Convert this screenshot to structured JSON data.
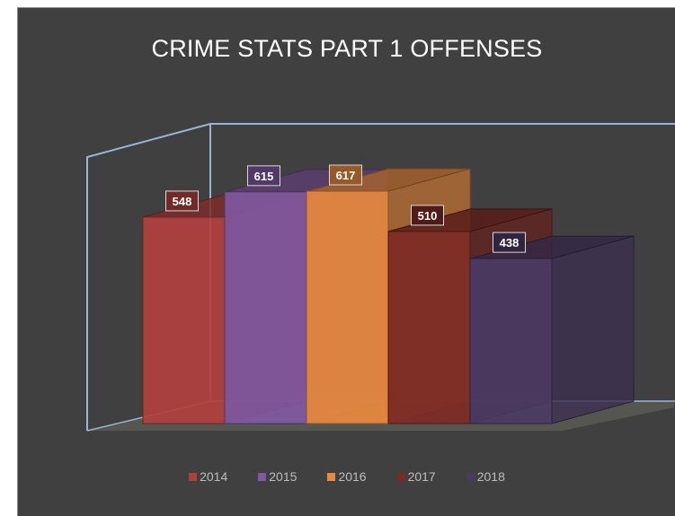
{
  "chart_data": {
    "type": "bar",
    "title": "CRIME STATS PART 1 OFFENSES",
    "categories": [
      "2014",
      "2015",
      "2016",
      "2017",
      "2018"
    ],
    "values": [
      548,
      615,
      617,
      510,
      438
    ],
    "series": [
      {
        "name": "2014",
        "value": 548,
        "color": "#b0403e"
      },
      {
        "name": "2015",
        "value": 615,
        "color": "#8058a1"
      },
      {
        "name": "2016",
        "value": 617,
        "color": "#e8893e"
      },
      {
        "name": "2017",
        "value": 510,
        "color": "#7c2a24"
      },
      {
        "name": "2018",
        "value": 438,
        "color": "#4a3963"
      }
    ],
    "legend_position": "bottom",
    "grid": false,
    "style": "3d-column"
  }
}
